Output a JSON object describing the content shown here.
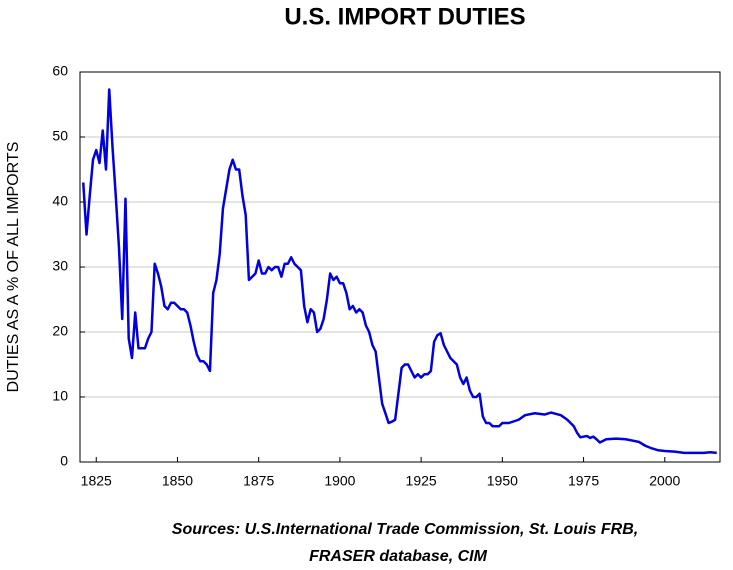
{
  "chart_data": {
    "type": "line",
    "title": "U.S. IMPORT DUTIES",
    "y_label": "DUTIES AS A % OF ALL IMPORTS",
    "source_lines": [
      "Sources: U.S.International Trade Commission, St. Louis FRB,",
      "FRASER database, CIM"
    ],
    "x": [
      1821,
      1822,
      1823,
      1824,
      1825,
      1826,
      1827,
      1828,
      1829,
      1830,
      1831,
      1832,
      1833,
      1834,
      1835,
      1836,
      1837,
      1838,
      1839,
      1840,
      1841,
      1842,
      1843,
      1844,
      1845,
      1846,
      1847,
      1848,
      1849,
      1850,
      1851,
      1852,
      1853,
      1854,
      1855,
      1856,
      1857,
      1858,
      1859,
      1860,
      1861,
      1862,
      1863,
      1864,
      1865,
      1866,
      1867,
      1868,
      1869,
      1870,
      1871,
      1872,
      1873,
      1874,
      1875,
      1876,
      1877,
      1878,
      1879,
      1880,
      1881,
      1882,
      1883,
      1884,
      1885,
      1886,
      1887,
      1888,
      1889,
      1890,
      1891,
      1892,
      1893,
      1894,
      1895,
      1896,
      1897,
      1898,
      1899,
      1900,
      1901,
      1902,
      1903,
      1904,
      1905,
      1906,
      1907,
      1908,
      1909,
      1910,
      1911,
      1912,
      1913,
      1914,
      1915,
      1916,
      1917,
      1918,
      1919,
      1920,
      1921,
      1922,
      1923,
      1924,
      1925,
      1926,
      1927,
      1928,
      1929,
      1930,
      1931,
      1932,
      1933,
      1934,
      1935,
      1936,
      1937,
      1938,
      1939,
      1940,
      1941,
      1942,
      1943,
      1944,
      1945,
      1946,
      1947,
      1948,
      1949,
      1950,
      1952,
      1955,
      1957,
      1960,
      1963,
      1965,
      1968,
      1970,
      1972,
      1973,
      1974,
      1976,
      1977,
      1978,
      1979,
      1980,
      1982,
      1985,
      1988,
      1990,
      1992,
      1994,
      1996,
      1998,
      2000,
      2003,
      2006,
      2009,
      2012,
      2014,
      2016
    ],
    "series": [
      {
        "name": "Import duties",
        "color": "#0000e0",
        "values": [
          43,
          35,
          41,
          46.5,
          48,
          46,
          51,
          45,
          57.3,
          48.5,
          41,
          33,
          22,
          40.5,
          19,
          16,
          23,
          17.5,
          17.5,
          17.5,
          19,
          20,
          30.5,
          29,
          27,
          24,
          23.5,
          24.5,
          24.5,
          24,
          23.5,
          23.5,
          23,
          21,
          18.5,
          16.5,
          15.5,
          15.5,
          15,
          14,
          26,
          28,
          32,
          39,
          42,
          45,
          46.5,
          45,
          45,
          41,
          38,
          28,
          28.5,
          29,
          31,
          29,
          29,
          30,
          29.5,
          30,
          30,
          28.5,
          30.5,
          30.5,
          31.5,
          30.5,
          30,
          29.5,
          24,
          21.5,
          23.5,
          23,
          20,
          20.5,
          22,
          25,
          29,
          28,
          28.5,
          27.5,
          27.5,
          26,
          23.5,
          24,
          23,
          23.5,
          23,
          21,
          20,
          18,
          17,
          13,
          9,
          7.5,
          6,
          6.2,
          6.5,
          10.5,
          14.5,
          15,
          15,
          14,
          13,
          13.5,
          13,
          13.5,
          13.5,
          14,
          18.5,
          19.5,
          19.8,
          18,
          17,
          16,
          15.5,
          15,
          13,
          12,
          13,
          11,
          10,
          10,
          10.5,
          7,
          6,
          6,
          5.5,
          5.5,
          5.5,
          6,
          6,
          6.5,
          7.2,
          7.5,
          7.3,
          7.6,
          7.2,
          6.5,
          5.5,
          4.5,
          3.8,
          4,
          3.7,
          3.9,
          3.5,
          3,
          3.5,
          3.6,
          3.5,
          3.3,
          3.1,
          2.5,
          2.1,
          1.8,
          1.7,
          1.6,
          1.4,
          1.4,
          1.4,
          1.5,
          1.4
        ]
      }
    ],
    "xlim": [
      1820,
      2017
    ],
    "xticks": [
      1825,
      1850,
      1875,
      1900,
      1925,
      1950,
      1975,
      2000
    ],
    "ylim": [
      0,
      60
    ],
    "yticks": [
      0,
      10,
      20,
      30,
      40,
      50,
      60
    ],
    "grid": true
  }
}
